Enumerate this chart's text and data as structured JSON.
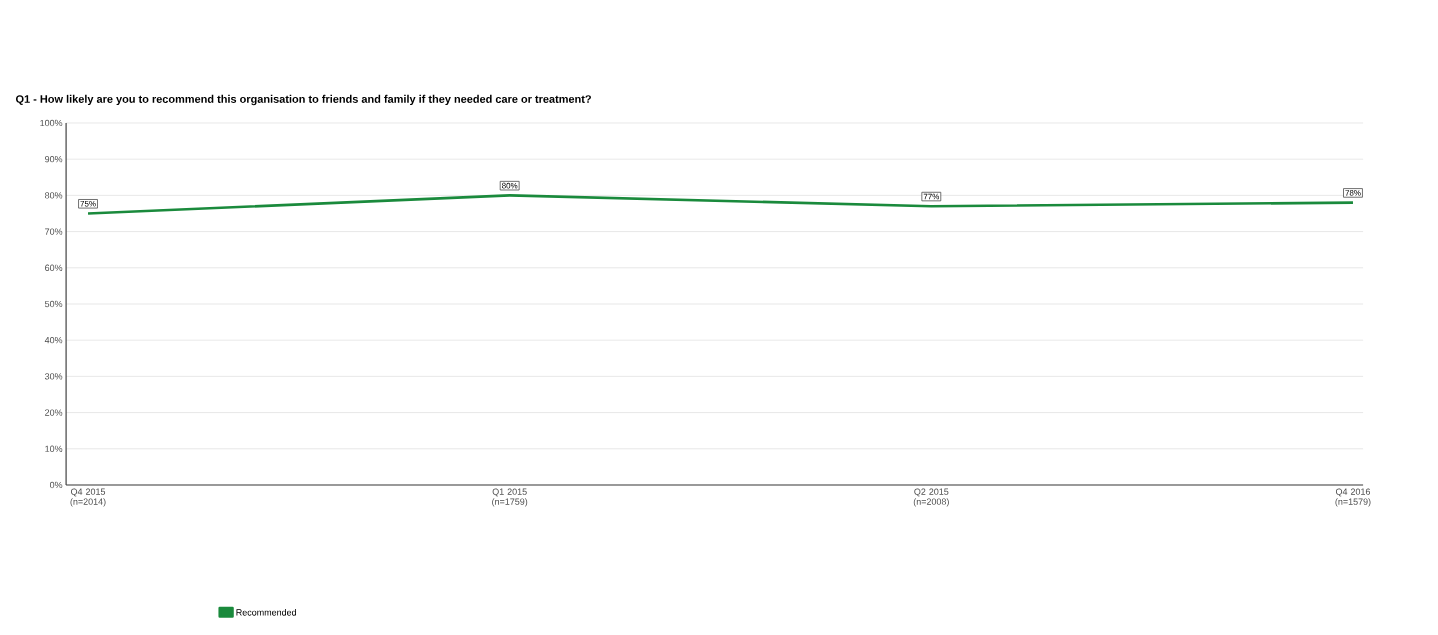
{
  "chart_data": {
    "type": "line",
    "title": "Q1 - How likely are you to recommend this organisation to friends and family if they needed care or treatment?",
    "categories": [
      "Q4 2015 (n=2014)",
      "Q1 2015 (n=1759)",
      "Q2 2015 (n=2008)",
      "Q4 2016 (n=1579)"
    ],
    "series": [
      {
        "name": "Recommended",
        "color": "#1a8a3c",
        "values": [
          75,
          80,
          77,
          78
        ],
        "value_labels": [
          "75%",
          "80%",
          "77%",
          "78%"
        ]
      }
    ],
    "ylim": [
      0,
      100
    ],
    "yticks": [
      {
        "value": 0,
        "label": "0%"
      },
      {
        "value": 10,
        "label": "10%"
      },
      {
        "value": 20,
        "label": "20%"
      },
      {
        "value": 30,
        "label": "30%"
      },
      {
        "value": 40,
        "label": "40%"
      },
      {
        "value": 50,
        "label": "50%"
      },
      {
        "value": 60,
        "label": "60%"
      },
      {
        "value": 70,
        "label": "70%"
      },
      {
        "value": 80,
        "label": "80%"
      },
      {
        "value": 90,
        "label": "90%"
      },
      {
        "value": 100,
        "label": "100%"
      }
    ],
    "grid": "y",
    "legend": "bottom left",
    "line_style": "solid"
  }
}
